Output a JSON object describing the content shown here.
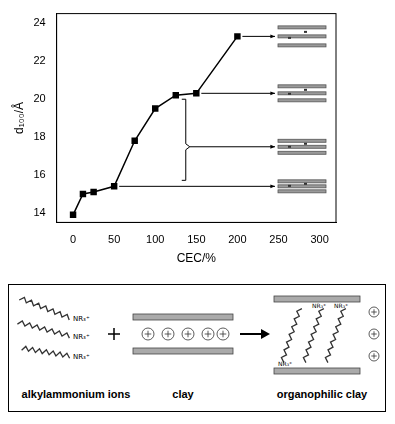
{
  "chart_data": {
    "type": "line",
    "x": [
      0,
      12,
      25,
      50,
      75,
      100,
      125,
      150,
      200
    ],
    "values": [
      13.9,
      15.0,
      15.1,
      15.4,
      17.8,
      19.5,
      20.2,
      20.3,
      23.3
    ],
    "color": "#000000",
    "marker": "square",
    "x_label": "CEC/%",
    "y_label": "d₁₀₀/Å",
    "xlim": [
      -20,
      320
    ],
    "xticks": [
      0,
      50,
      100,
      150,
      200,
      250,
      300
    ],
    "ylim": [
      13.5,
      24.5
    ],
    "yticks": [
      14,
      16,
      18,
      20,
      22,
      24
    ],
    "grid": false
  },
  "diagram": {
    "ion_label": "NR₃⁺",
    "labels": [
      "alkylammonium ions",
      "clay",
      "organophilic clay"
    ]
  }
}
